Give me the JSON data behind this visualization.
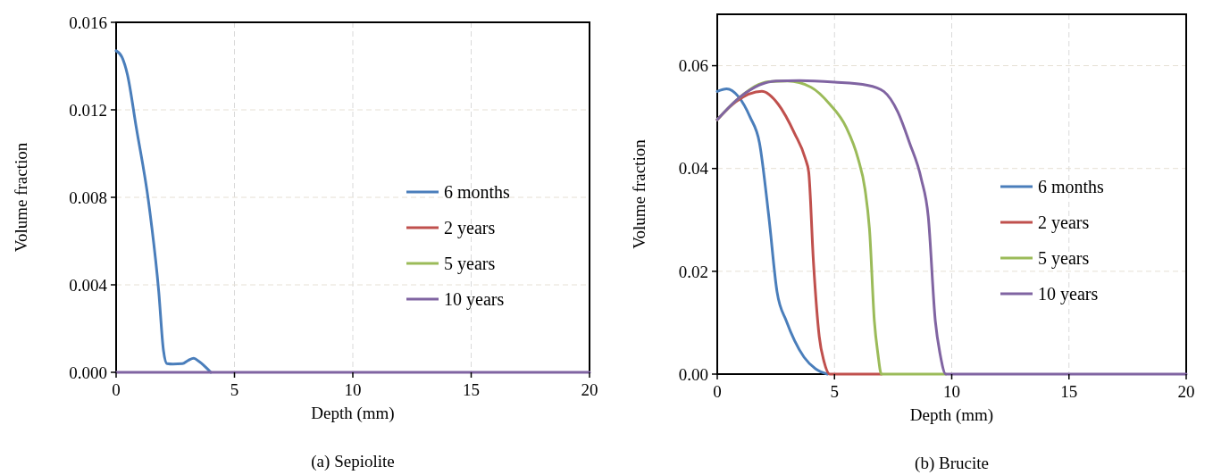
{
  "chart_data": [
    {
      "type": "line",
      "title": "(a) Sepiolite",
      "xlabel": "Depth (mm)",
      "ylabel": "Volume fraction",
      "xlim": [
        0,
        20
      ],
      "xticks": [
        0,
        5,
        10,
        15,
        20
      ],
      "ylim": [
        0,
        0.016
      ],
      "yticks": [
        {
          "value": 0,
          "label": "0.000"
        },
        {
          "value": 0.004,
          "label": "0.004"
        },
        {
          "value": 0.008,
          "label": "0.008"
        },
        {
          "value": 0.012,
          "label": "0.012"
        },
        {
          "value": 0.016,
          "label": "0.016"
        }
      ],
      "grid": true,
      "legend": "right",
      "line_style": "solid",
      "series": [
        {
          "name": "6 months",
          "color": "#4a7ebb",
          "x": [
            0,
            0.25,
            0.48,
            0.85,
            1.37,
            1.8,
            2.0,
            2.15,
            2.4,
            2.8,
            3.05,
            3.28,
            3.5,
            4.0
          ],
          "values": [
            0.0147,
            0.0144,
            0.0136,
            0.0112,
            0.0078,
            0.0037,
            0.001,
            0.0004,
            0.00038,
            0.0004,
            0.00055,
            0.00064,
            0.0005,
            0
          ]
        },
        {
          "name": "2 years",
          "color": "#c0504d"
        },
        {
          "name": "5 years",
          "color": "#9bbb59"
        },
        {
          "name": "10 years",
          "color": "#8064a2",
          "x": [
            0,
            20
          ],
          "values": [
            0,
            0
          ]
        }
      ]
    },
    {
      "type": "line",
      "title": "(b) Brucite",
      "xlabel": "Depth (mm)",
      "ylabel": "Volume fraction",
      "xlim": [
        0,
        20
      ],
      "xticks": [
        0,
        5,
        10,
        15,
        20
      ],
      "ylim": [
        0,
        0.07
      ],
      "yticks": [
        {
          "value": 0,
          "label": "0.00"
        },
        {
          "value": 0.02,
          "label": "0.02"
        },
        {
          "value": 0.04,
          "label": "0.04"
        },
        {
          "value": 0.06,
          "label": "0.06"
        }
      ],
      "grid": true,
      "legend": "right",
      "line_style": "solid",
      "series": [
        {
          "name": "6 months",
          "color": "#4a7ebb",
          "x": [
            0,
            0.4,
            0.9,
            1.4,
            1.8,
            2.2,
            2.55,
            2.95,
            3.3,
            3.7,
            4.2,
            4.7
          ],
          "values": [
            0.055,
            0.0555,
            0.054,
            0.05,
            0.045,
            0.0306,
            0.016,
            0.0103,
            0.0065,
            0.0033,
            0.001,
            0
          ]
        },
        {
          "name": "2 years",
          "color": "#c0504d",
          "x": [
            0,
            0.8,
            1.9,
            2.6,
            3.3,
            3.75,
            3.9,
            4.1,
            4.35,
            4.55,
            4.8,
            7.0
          ],
          "values": [
            0.0495,
            0.053,
            0.055,
            0.0525,
            0.0468,
            0.042,
            0.0393,
            0.022,
            0.0073,
            0.0025,
            0,
            0
          ]
        },
        {
          "name": "5 years",
          "color": "#9bbb59",
          "x": [
            0,
            1,
            2.2,
            3,
            4,
            4.8,
            5.5,
            6.0,
            6.3,
            6.5,
            6.7,
            6.85,
            7.0,
            9.75
          ],
          "values": [
            0.0495,
            0.054,
            0.0569,
            0.057,
            0.0558,
            0.0525,
            0.048,
            0.042,
            0.036,
            0.0277,
            0.0103,
            0.004,
            0,
            0
          ]
        },
        {
          "name": "10 years",
          "color": "#8064a2",
          "x": [
            0,
            1,
            2.5,
            3.5,
            5,
            6.4,
            7.1,
            7.7,
            8.2,
            8.7,
            9.0,
            9.3,
            9.5,
            9.75,
            20
          ],
          "values": [
            0.0495,
            0.054,
            0.057,
            0.0571,
            0.0568,
            0.0562,
            0.055,
            0.051,
            0.045,
            0.038,
            0.0306,
            0.0103,
            0.004,
            0,
            0
          ]
        }
      ]
    }
  ]
}
